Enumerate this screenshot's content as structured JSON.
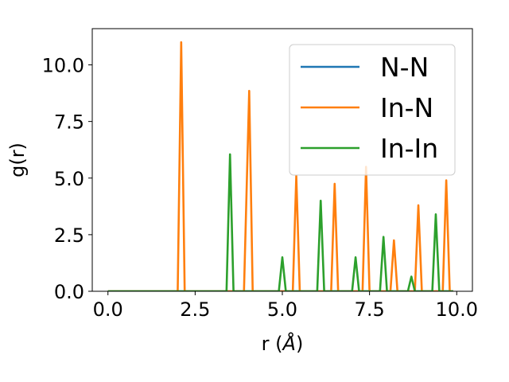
{
  "chart_data": {
    "type": "line",
    "xlabel_base": "r (",
    "xlabel_unit": "Å",
    "xlabel_end": ")",
    "ylabel": "g(r)",
    "xlim": [
      -0.45,
      10.45
    ],
    "ylim": [
      0,
      11.6
    ],
    "xticks": [
      0.0,
      2.5,
      5.0,
      7.5,
      10.0
    ],
    "xtick_labels": [
      "0.0",
      "2.5",
      "5.0",
      "7.5",
      "10.0"
    ],
    "yticks": [
      0.0,
      2.5,
      5.0,
      7.5,
      10.0
    ],
    "ytick_labels": [
      "0.0",
      "2.5",
      "5.0",
      "7.5",
      "10.0"
    ],
    "grid": false,
    "legend_position": "upper-right",
    "series": [
      {
        "name": "N-N",
        "color": "#1f77b4",
        "x": [
          0.0,
          9.9
        ],
        "y": [
          0.0,
          0.0
        ]
      },
      {
        "name": "In-N",
        "color": "#ff7f0e",
        "x": [
          0.0,
          2.0,
          2.1,
          2.2,
          3.9,
          4.05,
          4.15,
          5.3,
          5.4,
          5.5,
          6.4,
          6.5,
          6.6,
          7.3,
          7.4,
          7.5,
          8.1,
          8.2,
          8.3,
          8.8,
          8.9,
          9.0,
          9.6,
          9.7,
          9.8,
          9.9
        ],
        "y": [
          0.0,
          0.0,
          11.0,
          0.0,
          0.0,
          8.85,
          0.0,
          0.0,
          5.1,
          0.0,
          0.0,
          4.75,
          0.0,
          0.0,
          5.5,
          0.0,
          0.0,
          2.25,
          0.0,
          0.0,
          3.8,
          0.0,
          0.0,
          4.9,
          0.0,
          0.0
        ]
      },
      {
        "name": "In-In",
        "color": "#2ca02c",
        "x": [
          0.0,
          3.4,
          3.5,
          3.6,
          4.9,
          5.0,
          5.1,
          6.0,
          6.1,
          6.2,
          7.0,
          7.1,
          7.2,
          7.8,
          7.9,
          8.0,
          8.6,
          8.7,
          8.8,
          9.3,
          9.4,
          9.5,
          9.9
        ],
        "y": [
          0.0,
          0.0,
          6.05,
          0.0,
          0.0,
          1.5,
          0.0,
          0.0,
          4.0,
          0.0,
          0.0,
          1.5,
          0.0,
          0.0,
          2.4,
          0.0,
          0.0,
          0.65,
          0.0,
          0.0,
          3.4,
          0.0,
          0.0
        ]
      }
    ]
  }
}
